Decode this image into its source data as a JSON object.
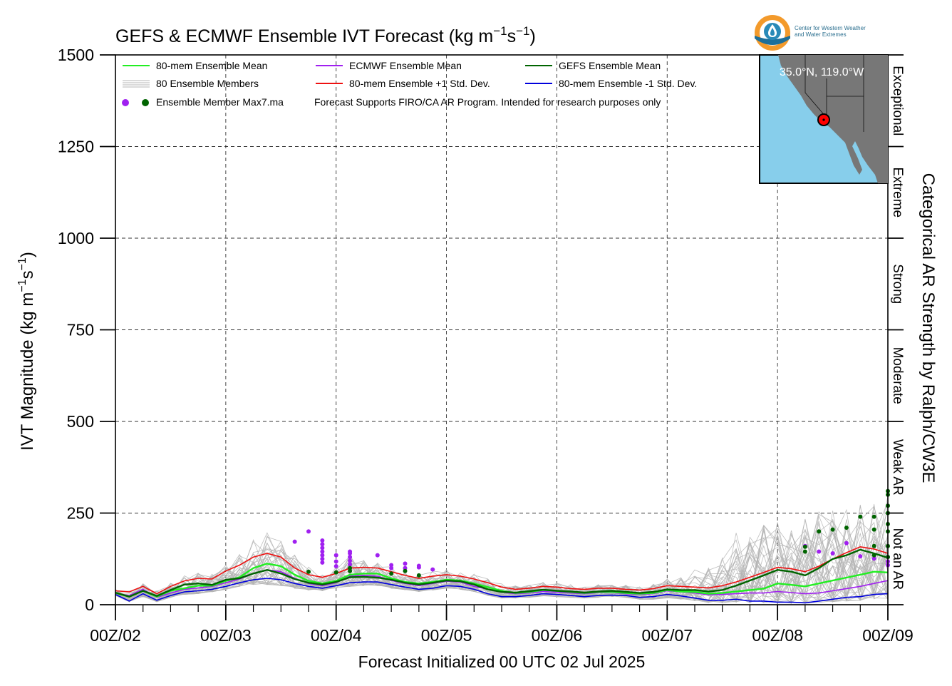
{
  "title_main": "GEFS & ECMWF Ensemble IVT Forecast (kg m",
  "title_exp1": "−1",
  "title_mid": "s",
  "title_exp2": "−1",
  "title_end": ")",
  "ylabel_main": "IVT Magnitude (kg m",
  "ylabel_exp1": "−1",
  "ylabel_mid": "s",
  "ylabel_exp2": "−1",
  "ylabel_end": ")",
  "xlabel": "Forecast Initialized 00 UTC 02 Jul 2025",
  "right_label": "Categorical AR Strength by Ralph/CW3E",
  "logo_text_line1": "Center for Western Weather",
  "logo_text_line2": "and Water Extremes",
  "inset_coords": "35.0°N, 119.0°W",
  "legend": {
    "mean80": "80-mem Ensemble Mean",
    "ecmwf_mean": "ECMWF Ensemble Mean",
    "gefs_mean": "GEFS Ensemble Mean",
    "members": "80 Ensemble Members",
    "plus_sd": "80-mem Ensemble +1 Std. Dev.",
    "minus_sd": "80-mem Ensemble -1 Std. Dev.",
    "max_label": "Ensemble Member Max7.ma",
    "note": "Forecast Supports FIRO/CA AR Program. Intended for research purposes only"
  },
  "colors": {
    "mean80": "#22ee22",
    "ecmwf": "#a020f0",
    "gefs": "#006400",
    "plus_sd": "#ee1111",
    "minus_sd": "#0000dd",
    "members": "#b4b4b4",
    "inset_ocean": "#87ceeb",
    "inset_land": "#777777"
  },
  "chart_data": {
    "type": "line",
    "xlim": [
      0,
      168
    ],
    "ylim": [
      0,
      1500
    ],
    "yticks": [
      0,
      250,
      500,
      750,
      1000,
      1250,
      1500
    ],
    "ytick_labels": [
      "0",
      "250",
      "500",
      "750",
      "1000",
      "1250",
      "1500"
    ],
    "xtick_hours": [
      0,
      24,
      48,
      72,
      96,
      120,
      144,
      168
    ],
    "xtick_labels": [
      "00Z/02",
      "00Z/03",
      "00Z/04",
      "00Z/05",
      "00Z/06",
      "00Z/07",
      "00Z/08",
      "00Z/09"
    ],
    "x_unit": "forecast hour",
    "grid": true,
    "legend_position": "top-left",
    "categories_right": [
      {
        "label": "Not an AR",
        "range": [
          0,
          250
        ]
      },
      {
        "label": "Weak AR",
        "range": [
          250,
          500
        ]
      },
      {
        "label": "Moderate",
        "range": [
          500,
          750
        ]
      },
      {
        "label": "Strong",
        "range": [
          750,
          1000
        ]
      },
      {
        "label": "Extreme",
        "range": [
          1000,
          1250
        ]
      },
      {
        "label": "Exceptional",
        "range": [
          1250,
          1500
        ]
      }
    ],
    "x": [
      0,
      3,
      6,
      9,
      12,
      15,
      18,
      21,
      24,
      27,
      30,
      33,
      36,
      39,
      42,
      45,
      48,
      51,
      54,
      57,
      60,
      63,
      66,
      69,
      72,
      75,
      78,
      81,
      84,
      87,
      90,
      93,
      96,
      99,
      102,
      105,
      108,
      111,
      114,
      117,
      120,
      123,
      126,
      129,
      132,
      135,
      138,
      141,
      144,
      147,
      150,
      153,
      156,
      159,
      162,
      165,
      168
    ],
    "series": [
      {
        "name": "80-mem Ensemble Mean",
        "key": "mean80",
        "values": [
          32,
          22,
          38,
          22,
          38,
          45,
          52,
          52,
          65,
          75,
          100,
          112,
          105,
          82,
          65,
          58,
          65,
          82,
          85,
          85,
          72,
          62,
          58,
          62,
          68,
          66,
          58,
          48,
          38,
          32,
          35,
          40,
          38,
          35,
          32,
          35,
          35,
          32,
          30,
          32,
          40,
          36,
          35,
          30,
          32,
          36,
          40,
          44,
          58,
          54,
          50,
          58,
          66,
          74,
          82,
          90,
          88
        ]
      },
      {
        "name": "ECMWF Ensemble Mean",
        "key": "ecmwf",
        "values": [
          30,
          25,
          42,
          20,
          32,
          42,
          46,
          50,
          60,
          70,
          85,
          95,
          90,
          72,
          58,
          52,
          60,
          78,
          80,
          78,
          66,
          58,
          52,
          58,
          64,
          62,
          50,
          42,
          34,
          30,
          32,
          36,
          34,
          32,
          30,
          33,
          33,
          30,
          28,
          30,
          38,
          35,
          32,
          27,
          28,
          30,
          32,
          32,
          36,
          33,
          30,
          32,
          38,
          44,
          50,
          58,
          66
        ]
      },
      {
        "name": "GEFS Ensemble Mean",
        "key": "gefs",
        "values": [
          33,
          22,
          38,
          24,
          40,
          55,
          58,
          54,
          68,
          72,
          85,
          95,
          85,
          70,
          60,
          55,
          62,
          75,
          76,
          74,
          68,
          60,
          55,
          60,
          66,
          64,
          55,
          42,
          35,
          33,
          37,
          41,
          38,
          36,
          33,
          36,
          38,
          35,
          32,
          35,
          42,
          40,
          40,
          36,
          40,
          52,
          66,
          80,
          95,
          90,
          80,
          100,
          125,
          135,
          150,
          140,
          128
        ]
      },
      {
        "name": "80-mem Ensemble +1 Std. Dev.",
        "key": "plus_sd",
        "values": [
          38,
          35,
          50,
          30,
          50,
          65,
          72,
          70,
          92,
          108,
          130,
          140,
          130,
          100,
          82,
          75,
          85,
          100,
          102,
          100,
          90,
          80,
          72,
          78,
          82,
          78,
          70,
          60,
          48,
          42,
          45,
          50,
          48,
          44,
          42,
          45,
          45,
          42,
          40,
          44,
          52,
          50,
          48,
          46,
          52,
          62,
          75,
          88,
          102,
          98,
          90,
          105,
          125,
          142,
          158,
          152,
          140
        ]
      },
      {
        "name": "80-mem Ensemble -1 Std. Dev.",
        "key": "minus_sd",
        "values": [
          28,
          10,
          30,
          12,
          25,
          35,
          38,
          42,
          50,
          60,
          68,
          72,
          68,
          58,
          50,
          45,
          52,
          60,
          62,
          62,
          55,
          48,
          42,
          45,
          52,
          50,
          42,
          30,
          22,
          22,
          25,
          30,
          28,
          25,
          22,
          25,
          26,
          25,
          20,
          22,
          28,
          24,
          18,
          12,
          12,
          15,
          10,
          10,
          7,
          7,
          5,
          10,
          15,
          20,
          22,
          28,
          30
        ]
      }
    ],
    "member_band": {
      "low": [
        25,
        8,
        22,
        8,
        20,
        28,
        30,
        35,
        42,
        50,
        55,
        55,
        52,
        45,
        40,
        38,
        45,
        50,
        52,
        52,
        45,
        40,
        36,
        40,
        45,
        42,
        36,
        25,
        18,
        18,
        20,
        24,
        22,
        20,
        18,
        20,
        22,
        20,
        15,
        15,
        18,
        15,
        10,
        6,
        5,
        6,
        5,
        5,
        4,
        4,
        4,
        6,
        8,
        10,
        12,
        15,
        15
      ],
      "high": [
        42,
        40,
        58,
        38,
        60,
        80,
        88,
        85,
        110,
        140,
        180,
        200,
        185,
        140,
        105,
        92,
        105,
        135,
        130,
        120,
        105,
        92,
        84,
        92,
        96,
        92,
        84,
        72,
        58,
        52,
        56,
        62,
        60,
        55,
        52,
        56,
        56,
        54,
        50,
        56,
        70,
        76,
        96,
        110,
        145,
        200,
        215,
        220,
        225,
        235,
        245,
        260,
        275,
        285,
        300,
        290,
        310
      ]
    },
    "max_points": {
      "ecmwf_color": "#a020f0",
      "gefs_color": "#006400",
      "ecmwf": [
        [
          42,
          200
        ],
        [
          39,
          172
        ],
        [
          45,
          175
        ],
        [
          45,
          165
        ],
        [
          45,
          155
        ],
        [
          45,
          145
        ],
        [
          45,
          135
        ],
        [
          45,
          125
        ],
        [
          45,
          115
        ],
        [
          48,
          135
        ],
        [
          48,
          118
        ],
        [
          48,
          105
        ],
        [
          51,
          145
        ],
        [
          51,
          140
        ],
        [
          51,
          130
        ],
        [
          51,
          120
        ],
        [
          51,
          110
        ],
        [
          57,
          135
        ],
        [
          60,
          100
        ],
        [
          60,
          108
        ],
        [
          63,
          112
        ],
        [
          63,
          100
        ],
        [
          66,
          102
        ],
        [
          66,
          106
        ],
        [
          69,
          96
        ],
        [
          150,
          160
        ],
        [
          153,
          145
        ],
        [
          156,
          140
        ],
        [
          159,
          168
        ],
        [
          162,
          132
        ],
        [
          165,
          126
        ],
        [
          168,
          130
        ],
        [
          168,
          118
        ],
        [
          168,
          108
        ]
      ],
      "gefs": [
        [
          42,
          90
        ],
        [
          48,
          88
        ],
        [
          51,
          100
        ],
        [
          51,
          92
        ],
        [
          60,
          85
        ],
        [
          63,
          92
        ],
        [
          66,
          80
        ],
        [
          150,
          145
        ],
        [
          150,
          158
        ],
        [
          153,
          200
        ],
        [
          156,
          205
        ],
        [
          159,
          210
        ],
        [
          162,
          240
        ],
        [
          165,
          240
        ],
        [
          165,
          205
        ],
        [
          165,
          160
        ],
        [
          165,
          135
        ],
        [
          168,
          300
        ],
        [
          168,
          270
        ],
        [
          168,
          250
        ],
        [
          168,
          220
        ],
        [
          168,
          200
        ],
        [
          168,
          160
        ],
        [
          168,
          130
        ],
        [
          168,
          310
        ]
      ]
    }
  }
}
